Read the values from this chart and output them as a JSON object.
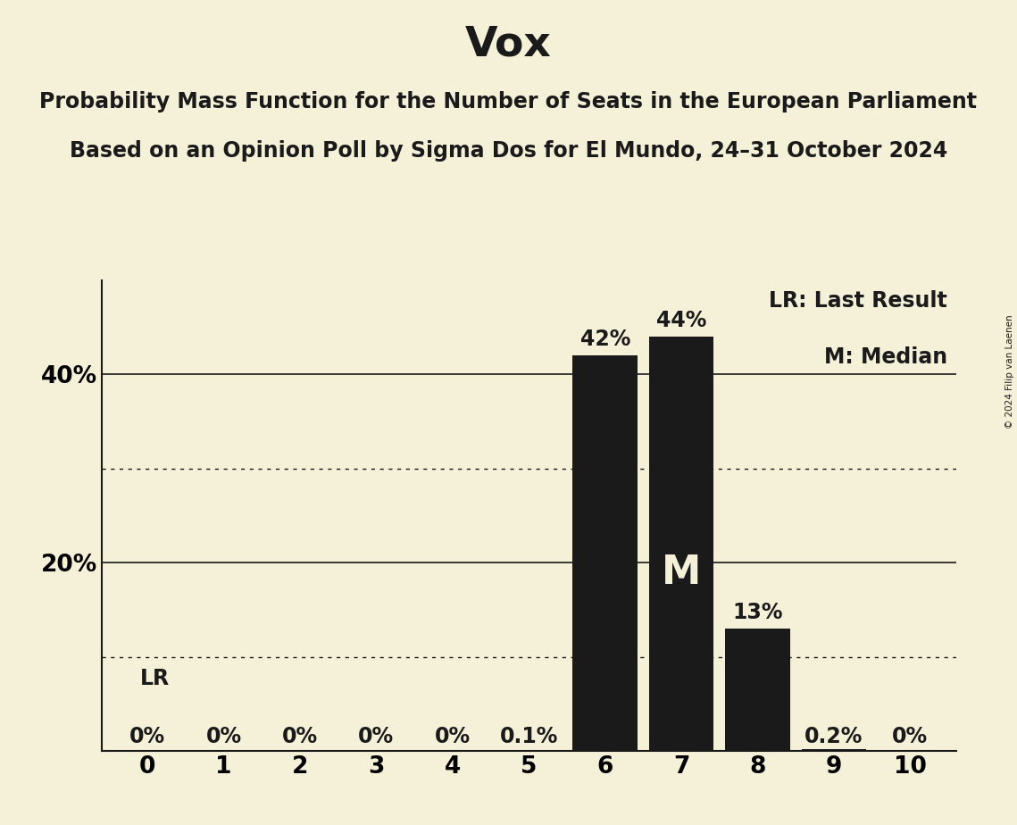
{
  "title": "Vox",
  "subtitle1": "Probability Mass Function for the Number of Seats in the European Parliament",
  "subtitle2": "Based on an Opinion Poll by Sigma Dos for El Mundo, 24–31 October 2024",
  "copyright": "© 2024 Filip van Laenen",
  "categories": [
    0,
    1,
    2,
    3,
    4,
    5,
    6,
    7,
    8,
    9,
    10
  ],
  "values": [
    0.0,
    0.0,
    0.0,
    0.0,
    0.0,
    0.001,
    0.42,
    0.44,
    0.13,
    0.002,
    0.0
  ],
  "bar_labels": [
    "0%",
    "0%",
    "0%",
    "0%",
    "0%",
    "0.1%",
    "42%",
    "44%",
    "13%",
    "0.2%",
    "0%"
  ],
  "bar_color": "#1a1a1a",
  "background_color": "#f5f0d8",
  "title_fontsize": 34,
  "subtitle_fontsize": 17,
  "label_fontsize": 17,
  "tick_fontsize": 19,
  "ylim": [
    0,
    0.5
  ],
  "ytick_positions": [
    0.2,
    0.4
  ],
  "ytick_labels": [
    "20%",
    "40%"
  ],
  "solid_gridlines": [
    0.2,
    0.4
  ],
  "dotted_gridlines": [
    0.1,
    0.3
  ],
  "lr_seat": 0,
  "median_seat": 7,
  "legend_lr": "LR: Last Result",
  "legend_m": "M: Median",
  "lr_label": "LR"
}
